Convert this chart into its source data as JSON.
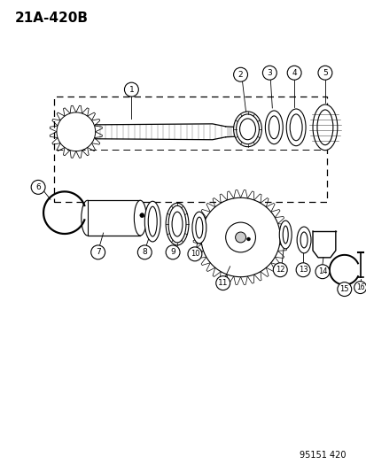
{
  "title": "21A-420B",
  "footer": "95151 420",
  "bg_color": "#ffffff",
  "line_color": "#000000"
}
